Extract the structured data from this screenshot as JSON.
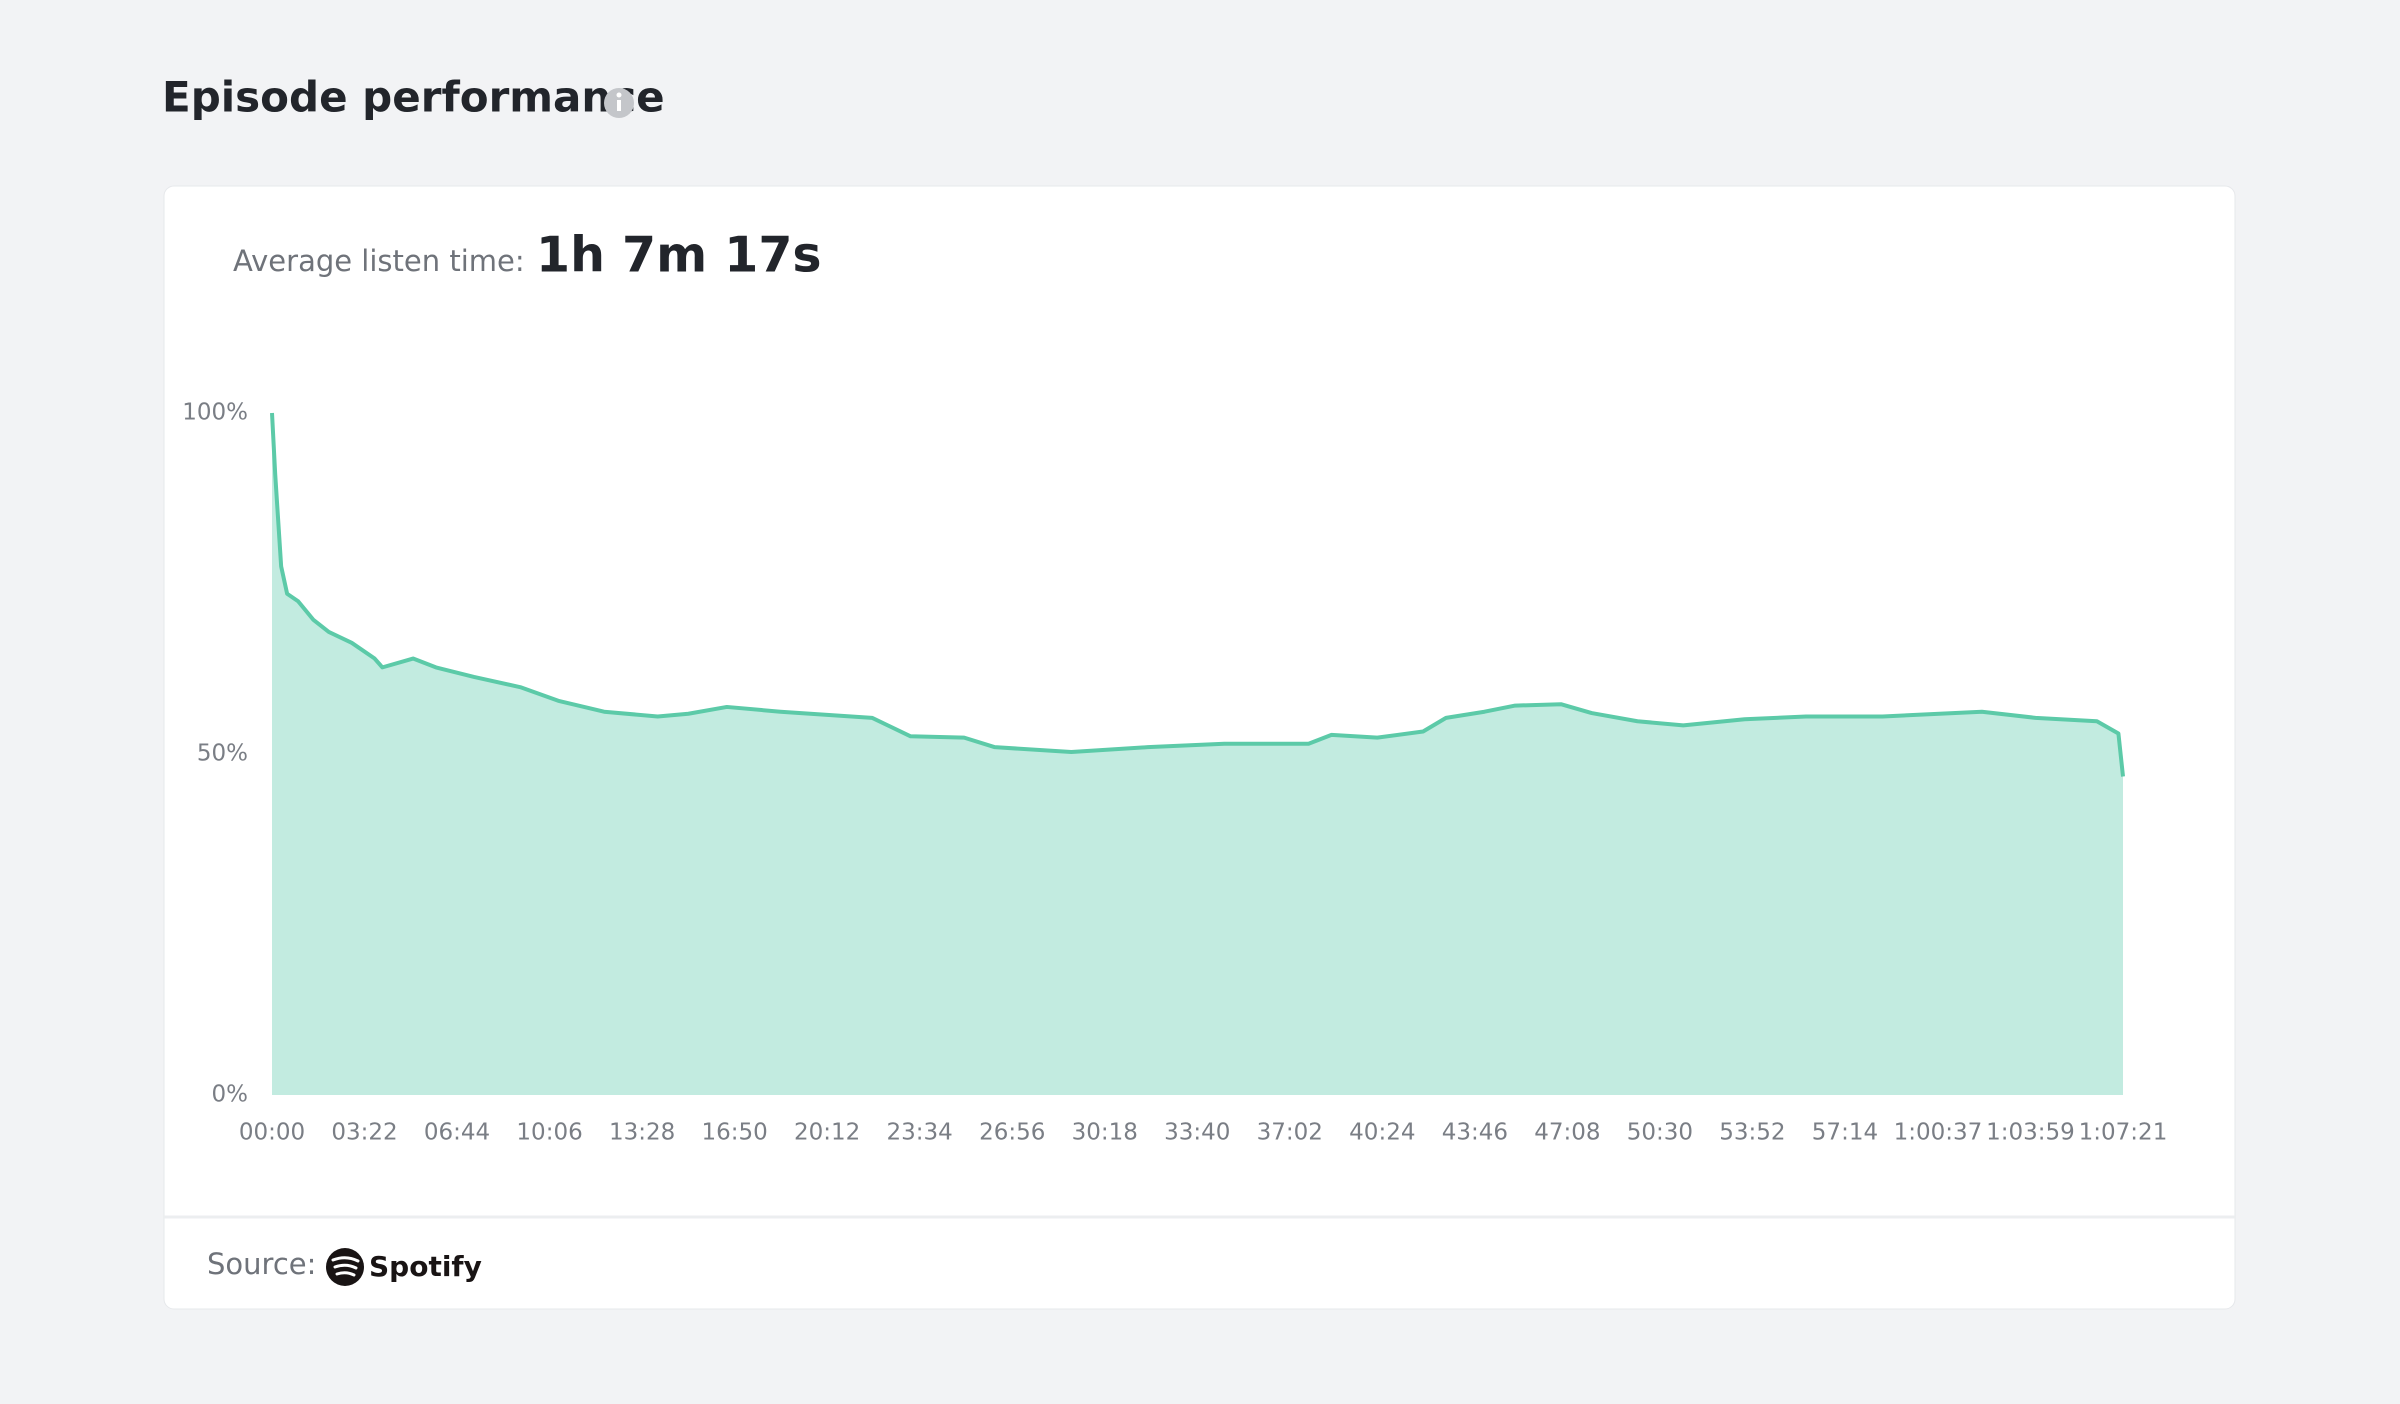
{
  "header": {
    "title": "Episode performance"
  },
  "summary": {
    "label": "Average listen time:",
    "value": "1h 7m 17s"
  },
  "chart_data": {
    "type": "area",
    "x": [
      0,
      7,
      20,
      33,
      57,
      90,
      124,
      174,
      224,
      241,
      308,
      358,
      441,
      542,
      625,
      725,
      842,
      909,
      993,
      1110,
      1310,
      1394,
      1511,
      1578,
      1745,
      1912,
      2079,
      2263,
      2313,
      2413,
      2513,
      2563,
      2647,
      2714,
      2814,
      2881,
      2981,
      3081,
      3215,
      3349,
      3516,
      3733,
      3850,
      3984,
      4031,
      4041
    ],
    "values": [
      100,
      91,
      77.5,
      73.5,
      72.4,
      69.7,
      67.9,
      66.3,
      64,
      62.7,
      64,
      62.7,
      61.3,
      59.8,
      57.8,
      56.2,
      55.5,
      55.9,
      56.9,
      56.2,
      55.3,
      52.6,
      52.4,
      51,
      50.3,
      51,
      51.5,
      51.5,
      52.8,
      52.4,
      53.3,
      55.3,
      56.2,
      57.1,
      57.3,
      56,
      54.8,
      54.2,
      55.1,
      55.5,
      55.5,
      56.2,
      55.3,
      54.8,
      53,
      46.7
    ],
    "color": "#5ccaa8",
    "fill_color": "#c2ebe0",
    "xlim": [
      0,
      4041
    ],
    "xticks": [
      {
        "value": 0,
        "label": "00:00"
      },
      {
        "value": 202,
        "label": "03:22"
      },
      {
        "value": 404,
        "label": "06:44"
      },
      {
        "value": 606,
        "label": "10:06"
      },
      {
        "value": 808,
        "label": "13:28"
      },
      {
        "value": 1010,
        "label": "16:50"
      },
      {
        "value": 1212,
        "label": "20:12"
      },
      {
        "value": 1414,
        "label": "23:34"
      },
      {
        "value": 1616,
        "label": "26:56"
      },
      {
        "value": 1818,
        "label": "30:18"
      },
      {
        "value": 2020,
        "label": "33:40"
      },
      {
        "value": 2222,
        "label": "37:02"
      },
      {
        "value": 2424,
        "label": "40:24"
      },
      {
        "value": 2626,
        "label": "43:46"
      },
      {
        "value": 2828,
        "label": "47:08"
      },
      {
        "value": 3030,
        "label": "50:30"
      },
      {
        "value": 3232,
        "label": "53:52"
      },
      {
        "value": 3434,
        "label": "57:14"
      },
      {
        "value": 3637,
        "label": "1:00:37"
      },
      {
        "value": 3839,
        "label": "1:03:59"
      },
      {
        "value": 4041,
        "label": "1:07:21"
      }
    ],
    "ylim": [
      0,
      100
    ],
    "yticks": [
      {
        "value": 0,
        "label": "0%"
      },
      {
        "value": 50,
        "label": "50%"
      },
      {
        "value": 100,
        "label": "100%"
      }
    ]
  },
  "footer": {
    "label": "Source:",
    "brand": "Spotify"
  }
}
